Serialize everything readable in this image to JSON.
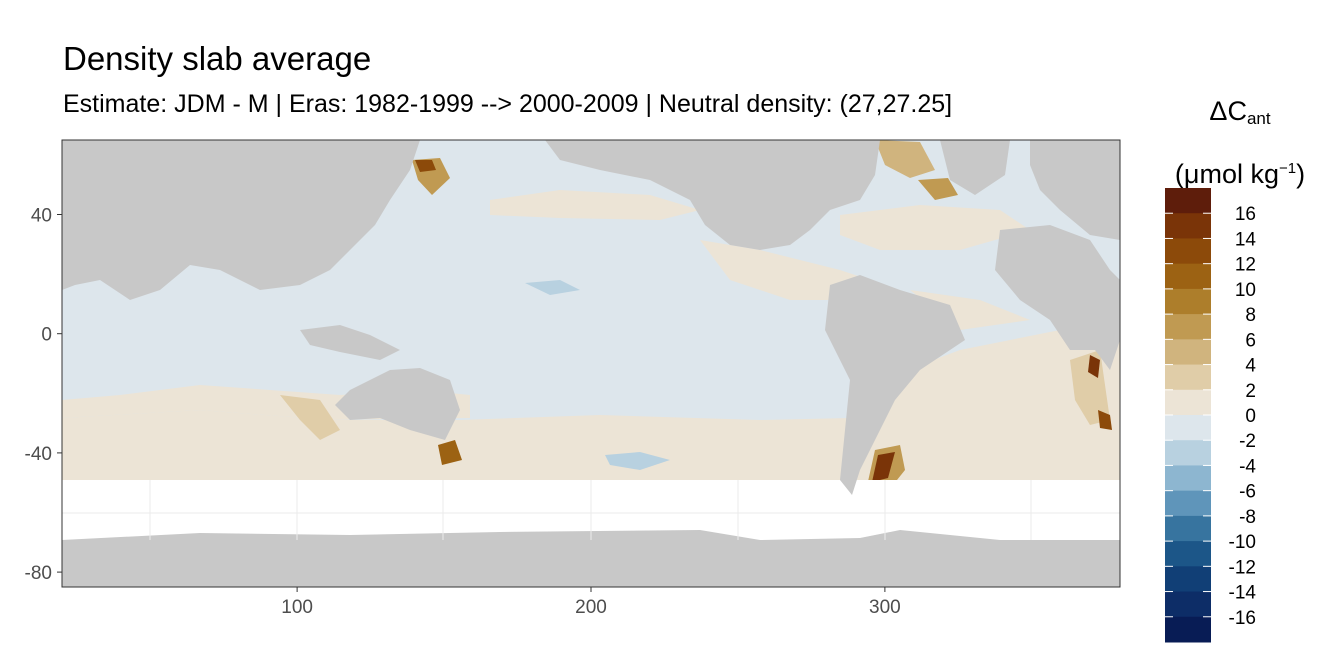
{
  "title": "Density slab average",
  "subtitle": "Estimate: JDM - M | Eras: 1982-1999 --> 2000-2009 | Neutral density: (27,27.25]",
  "legend": {
    "symbol": "ΔC",
    "subscript": "ant",
    "unit_open": "(μmol kg",
    "unit_exp": "−1",
    "unit_close": ")",
    "labels": [
      "16",
      "14",
      "12",
      "10",
      "8",
      "6",
      "4",
      "2",
      "0",
      "-2",
      "-4",
      "-6",
      "-8",
      "-10",
      "-12",
      "-14",
      "-16"
    ],
    "colors": [
      "#5e1d0b",
      "#7a3408",
      "#8c4a0a",
      "#9c6213",
      "#ad7e2b",
      "#c09a52",
      "#d0b47e",
      "#e0cda8",
      "#ece4d6",
      "#dde6ec",
      "#b8d1e0",
      "#8db6d0",
      "#5f95ba",
      "#37749f",
      "#1c5688",
      "#113f76",
      "#0d2d67",
      "#081c55"
    ]
  },
  "chart_data": {
    "type": "heatmap",
    "x_ticks": [
      "100",
      "200",
      "300"
    ],
    "y_ticks": [
      "40",
      "0",
      "-40",
      "-80"
    ],
    "x_range": [
      20,
      380
    ],
    "y_range": [
      -85,
      65
    ],
    "grid": true,
    "legend_position": "right",
    "colors": {
      "land": "#c8c8c8",
      "ocean_base": "#dde6ec",
      "no_data": "#ffffff"
    }
  }
}
